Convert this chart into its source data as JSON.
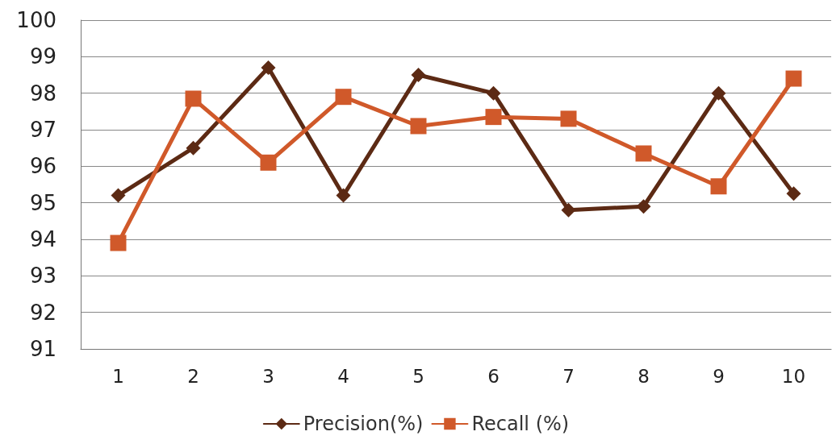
{
  "chart_data": {
    "type": "line",
    "categories": [
      "1",
      "2",
      "3",
      "4",
      "5",
      "6",
      "7",
      "8",
      "9",
      "10"
    ],
    "series": [
      {
        "name": "Precision(%)",
        "color": "#5c2a14",
        "marker": "diamond",
        "values": [
          95.2,
          96.5,
          98.7,
          95.2,
          98.5,
          98.0,
          94.8,
          94.9,
          98.0,
          95.25
        ]
      },
      {
        "name": "Recall (%)",
        "color": "#d0592a",
        "marker": "square",
        "values": [
          93.9,
          97.85,
          96.1,
          97.9,
          97.1,
          97.35,
          97.3,
          96.35,
          95.45,
          98.4
        ]
      }
    ],
    "ylim": [
      91,
      100
    ],
    "yticks": [
      91,
      92,
      93,
      94,
      95,
      96,
      97,
      98,
      99,
      100
    ],
    "grid": "y",
    "legend": "bottom",
    "line_style": "solid"
  }
}
